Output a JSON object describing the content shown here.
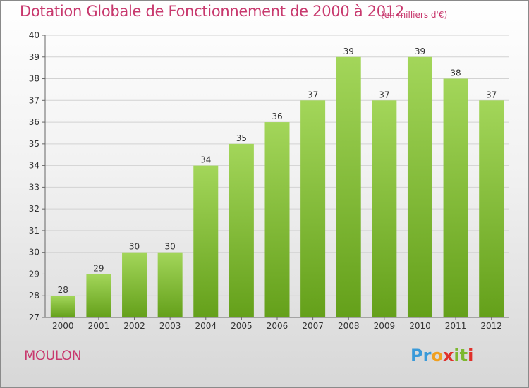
{
  "title": "Dotation Globale de Fonctionnement de 2000 à 2012",
  "subtitle": "(en milliers d'€)",
  "commune": "MOULON",
  "logo": {
    "letters": [
      "P",
      "r",
      "o",
      "x",
      "i",
      "t",
      "i"
    ],
    "colors": [
      "#3a9ad9",
      "#3a9ad9",
      "#f0a020",
      "#e0302a",
      "#7cb82f",
      "#7cb82f",
      "#e0302a"
    ]
  },
  "colors": {
    "title": "#c8396e",
    "bar_light": "#a3d65a",
    "bar_dark": "#64a01a",
    "grid": "#d2d2d2",
    "axis": "#666666"
  },
  "chart_data": {
    "type": "bar",
    "categories": [
      "2000",
      "2001",
      "2002",
      "2003",
      "2004",
      "2005",
      "2006",
      "2007",
      "2008",
      "2009",
      "2010",
      "2011",
      "2012"
    ],
    "values": [
      28,
      29,
      30,
      30,
      34,
      35,
      36,
      37,
      39,
      37,
      39,
      38,
      37
    ],
    "ylim": [
      27,
      40
    ],
    "yticks": [
      27,
      28,
      29,
      30,
      31,
      32,
      33,
      34,
      35,
      36,
      37,
      38,
      39,
      40
    ],
    "grid": true,
    "xlabel": "",
    "ylabel": ""
  }
}
